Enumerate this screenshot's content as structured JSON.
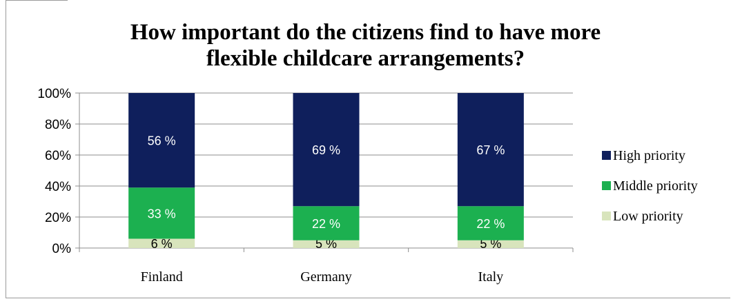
{
  "chart_data": {
    "type": "bar",
    "stacked": true,
    "title_lines": [
      "How important do the citizens find to have more",
      "flexible childcare arrangements?"
    ],
    "categories": [
      "Finland",
      "Germany",
      "Italy"
    ],
    "series": [
      {
        "name": "Low priority",
        "values": [
          6,
          5,
          5
        ],
        "labels": [
          "6 %",
          "5 %",
          "5 %"
        ],
        "color": "#d8e4bc",
        "label_color": "#000000"
      },
      {
        "name": "Middle priority",
        "values": [
          33,
          22,
          22
        ],
        "labels": [
          "33 %",
          "22 %",
          "22 %"
        ],
        "color": "#1cb050",
        "label_color": "#ffffff"
      },
      {
        "name": "High priority",
        "values": [
          56,
          69,
          67
        ],
        "labels": [
          "56 %",
          "69 %",
          "67 %"
        ],
        "color": "#0f1f5c",
        "label_color": "#ffffff"
      }
    ],
    "legend_order": [
      "High priority",
      "Middle priority",
      "Low priority"
    ],
    "y_ticks": [
      "0%",
      "20%",
      "40%",
      "60%",
      "80%",
      "100%"
    ],
    "ylim": [
      0,
      100
    ],
    "grid": true,
    "legend_position": "right"
  }
}
